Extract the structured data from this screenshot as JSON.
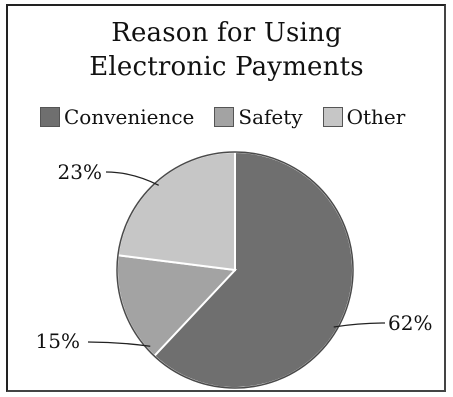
{
  "chart_data": {
    "type": "pie",
    "title": "Reason for Using Electronic Payments",
    "title_lines": [
      "Reason for Using",
      "Electronic Payments"
    ],
    "legend_position": "top",
    "categories": [
      "Convenience",
      "Safety",
      "Other"
    ],
    "values": [
      62,
      15,
      23
    ],
    "labels": [
      "62%",
      "15%",
      "23%"
    ],
    "colors": [
      "#6f6f6f",
      "#a3a3a3",
      "#c6c6c6"
    ]
  }
}
